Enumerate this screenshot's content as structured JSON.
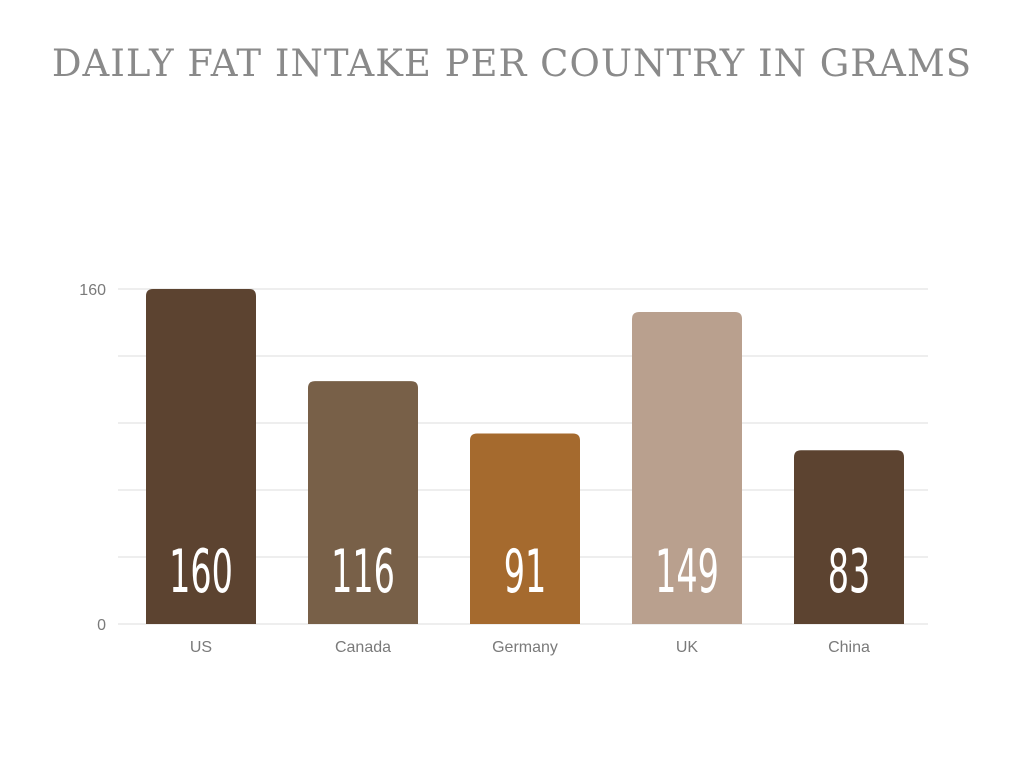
{
  "chart_data": {
    "type": "bar",
    "title": "DAILY FAT INTAKE PER COUNTRY IN GRAMS",
    "categories": [
      "US",
      "Canada",
      "Germany",
      "UK",
      "China"
    ],
    "values": [
      160,
      116,
      91,
      149,
      83
    ],
    "value_labels": [
      "160",
      "116",
      "91",
      "149",
      "83"
    ],
    "colors": [
      "#5c4330",
      "#786048",
      "#a56a2e",
      "#b9a08e",
      "#5c4330"
    ],
    "ylim": [
      0,
      160
    ],
    "y_tick_labels": [
      "0",
      "160"
    ],
    "gridlines": [
      0,
      32,
      64,
      96,
      128,
      160
    ],
    "grid": true,
    "xlabel": "",
    "ylabel": ""
  }
}
